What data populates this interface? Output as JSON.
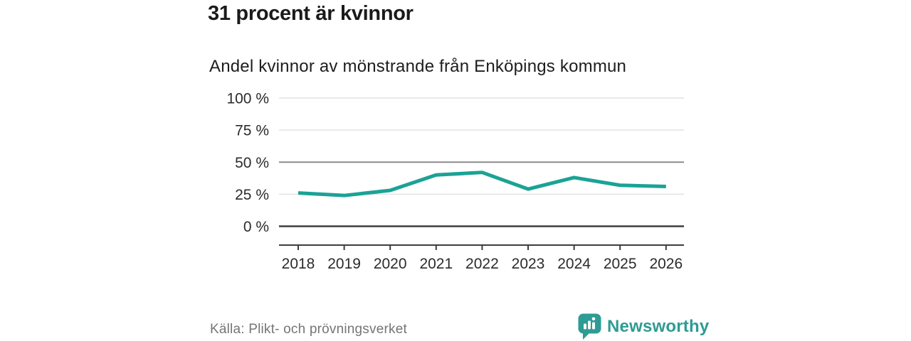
{
  "header": {
    "title": "31 procent är kvinnor",
    "subtitle": "Andel kvinnor av mönstrande från Enköpings kommun"
  },
  "chart_data": {
    "type": "line",
    "title": "31 procent är kvinnor",
    "subtitle": "Andel kvinnor av mönstrande från Enköpings kommun",
    "categories": [
      "2018",
      "2019",
      "2020",
      "2021",
      "2022",
      "2023",
      "2024",
      "2025",
      "2026"
    ],
    "series": [
      {
        "name": "Andel kvinnor av mönstrande",
        "values": [
          26,
          24,
          28,
          40,
          42,
          29,
          38,
          32,
          31
        ]
      }
    ],
    "unit": "%",
    "xlabel": "",
    "ylabel": "",
    "ylim": [
      0,
      100
    ],
    "yticks": [
      {
        "value": 100,
        "label": "100 %",
        "emphasis": "none"
      },
      {
        "value": 75,
        "label": "75 %",
        "emphasis": "none"
      },
      {
        "value": 50,
        "label": "50 %",
        "emphasis": "reference"
      },
      {
        "value": 25,
        "label": "25 %",
        "emphasis": "none"
      },
      {
        "value": 0,
        "label": "0 %",
        "emphasis": "baseline"
      }
    ],
    "grid": "horizontal",
    "legend": "none",
    "colors": {
      "line": "#1BA296",
      "grid": "#E2E2E2",
      "reference_line": "#8C8C8C",
      "axis": "#3D3D3D",
      "tick_text": "#2B2B2B"
    }
  },
  "footer": {
    "source": "Källa: Plikt- och prövningsverket",
    "brand": "Newsworthy",
    "brand_color": "#2E9B94",
    "logo_icon": "speech-bubble-bar-chart"
  }
}
